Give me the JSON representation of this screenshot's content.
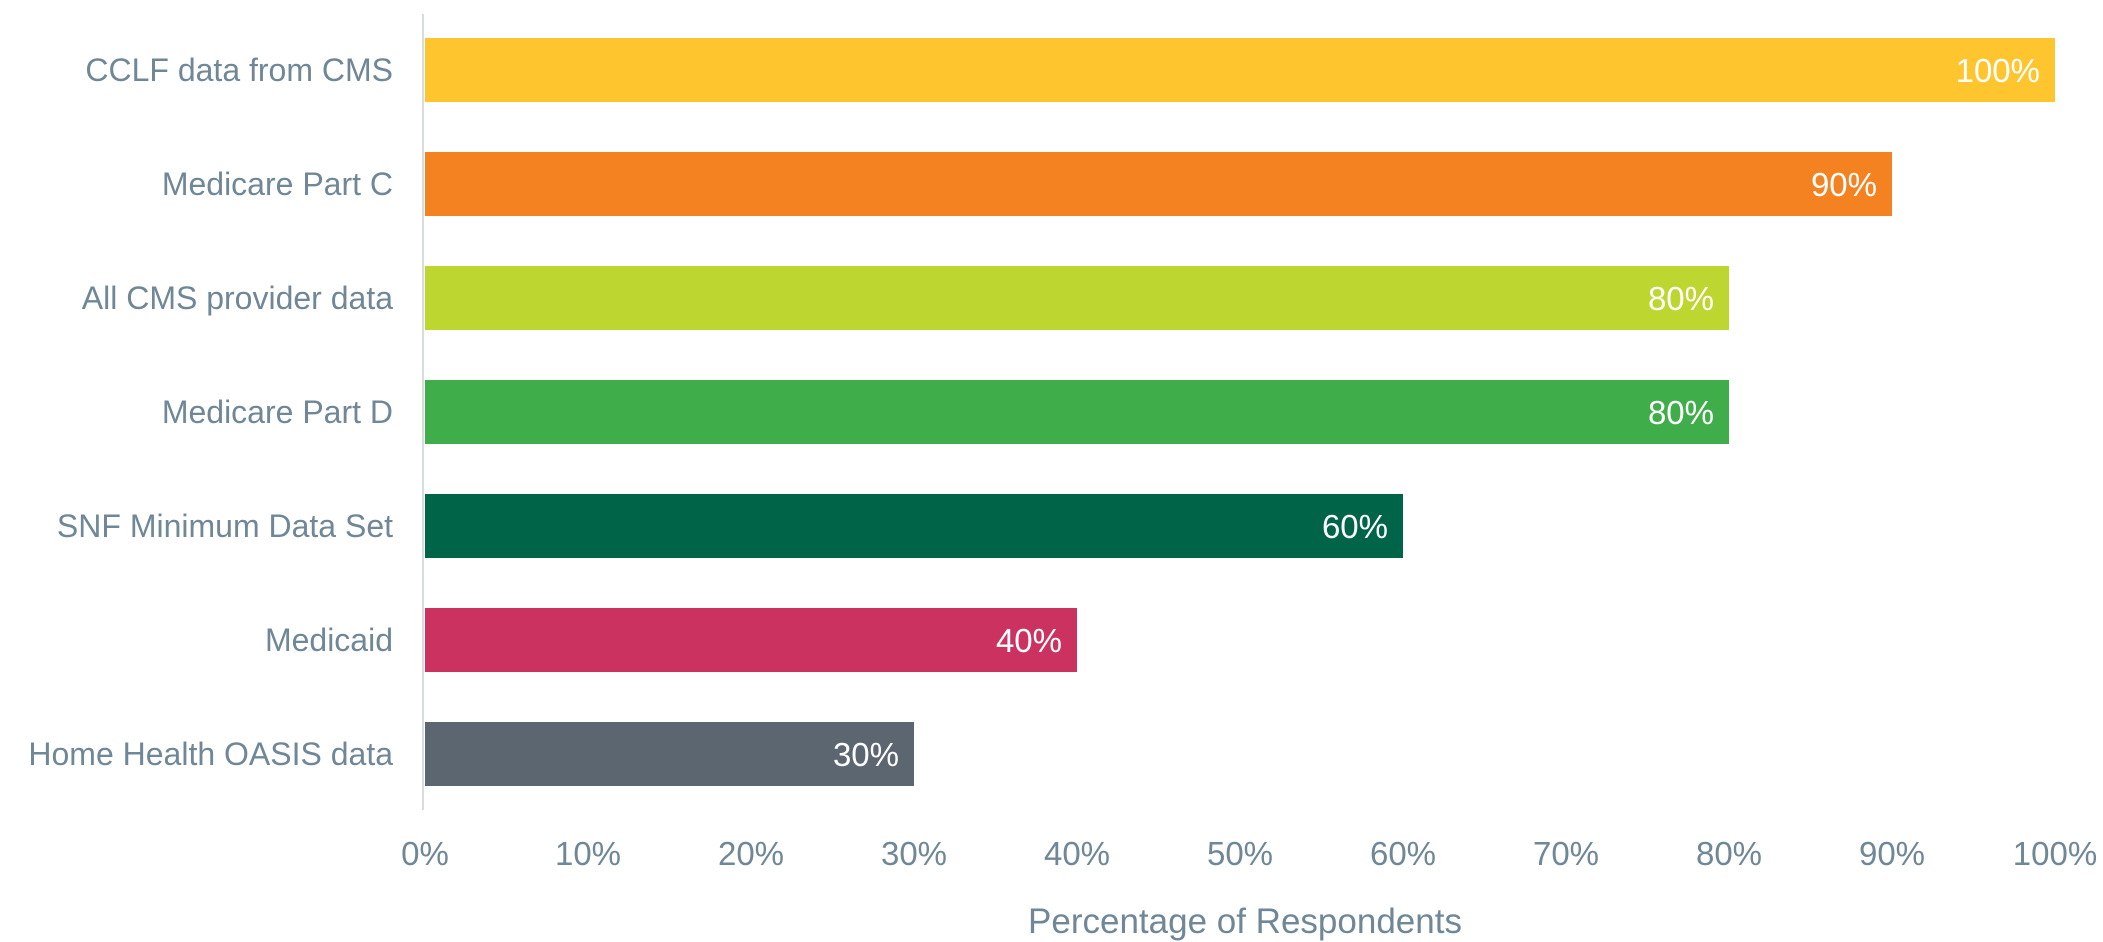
{
  "chart_data": {
    "type": "bar",
    "orientation": "horizontal",
    "categories": [
      "CCLF data from CMS",
      "Medicare Part C",
      "All CMS provider data",
      "Medicare Part D",
      "SNF Minimum Data Set",
      "Medicaid",
      "Home Health OASIS data"
    ],
    "values": [
      100,
      90,
      80,
      80,
      60,
      40,
      30
    ],
    "value_labels": [
      "100%",
      "90%",
      "80%",
      "80%",
      "60%",
      "40%",
      "30%"
    ],
    "colors": [
      "#fec52e",
      "#f58220",
      "#bed630",
      "#3fae4a",
      "#006548",
      "#cc3260",
      "#5b6670"
    ],
    "xlabel": "Percentage of Respondents",
    "xlim": [
      0,
      100
    ],
    "xticks": [
      0,
      10,
      20,
      30,
      40,
      50,
      60,
      70,
      80,
      90,
      100
    ],
    "xtick_labels": [
      "0%",
      "10%",
      "20%",
      "30%",
      "40%",
      "50%",
      "60%",
      "70%",
      "80%",
      "90%",
      "100%"
    ],
    "grid": false,
    "legend": "none"
  }
}
